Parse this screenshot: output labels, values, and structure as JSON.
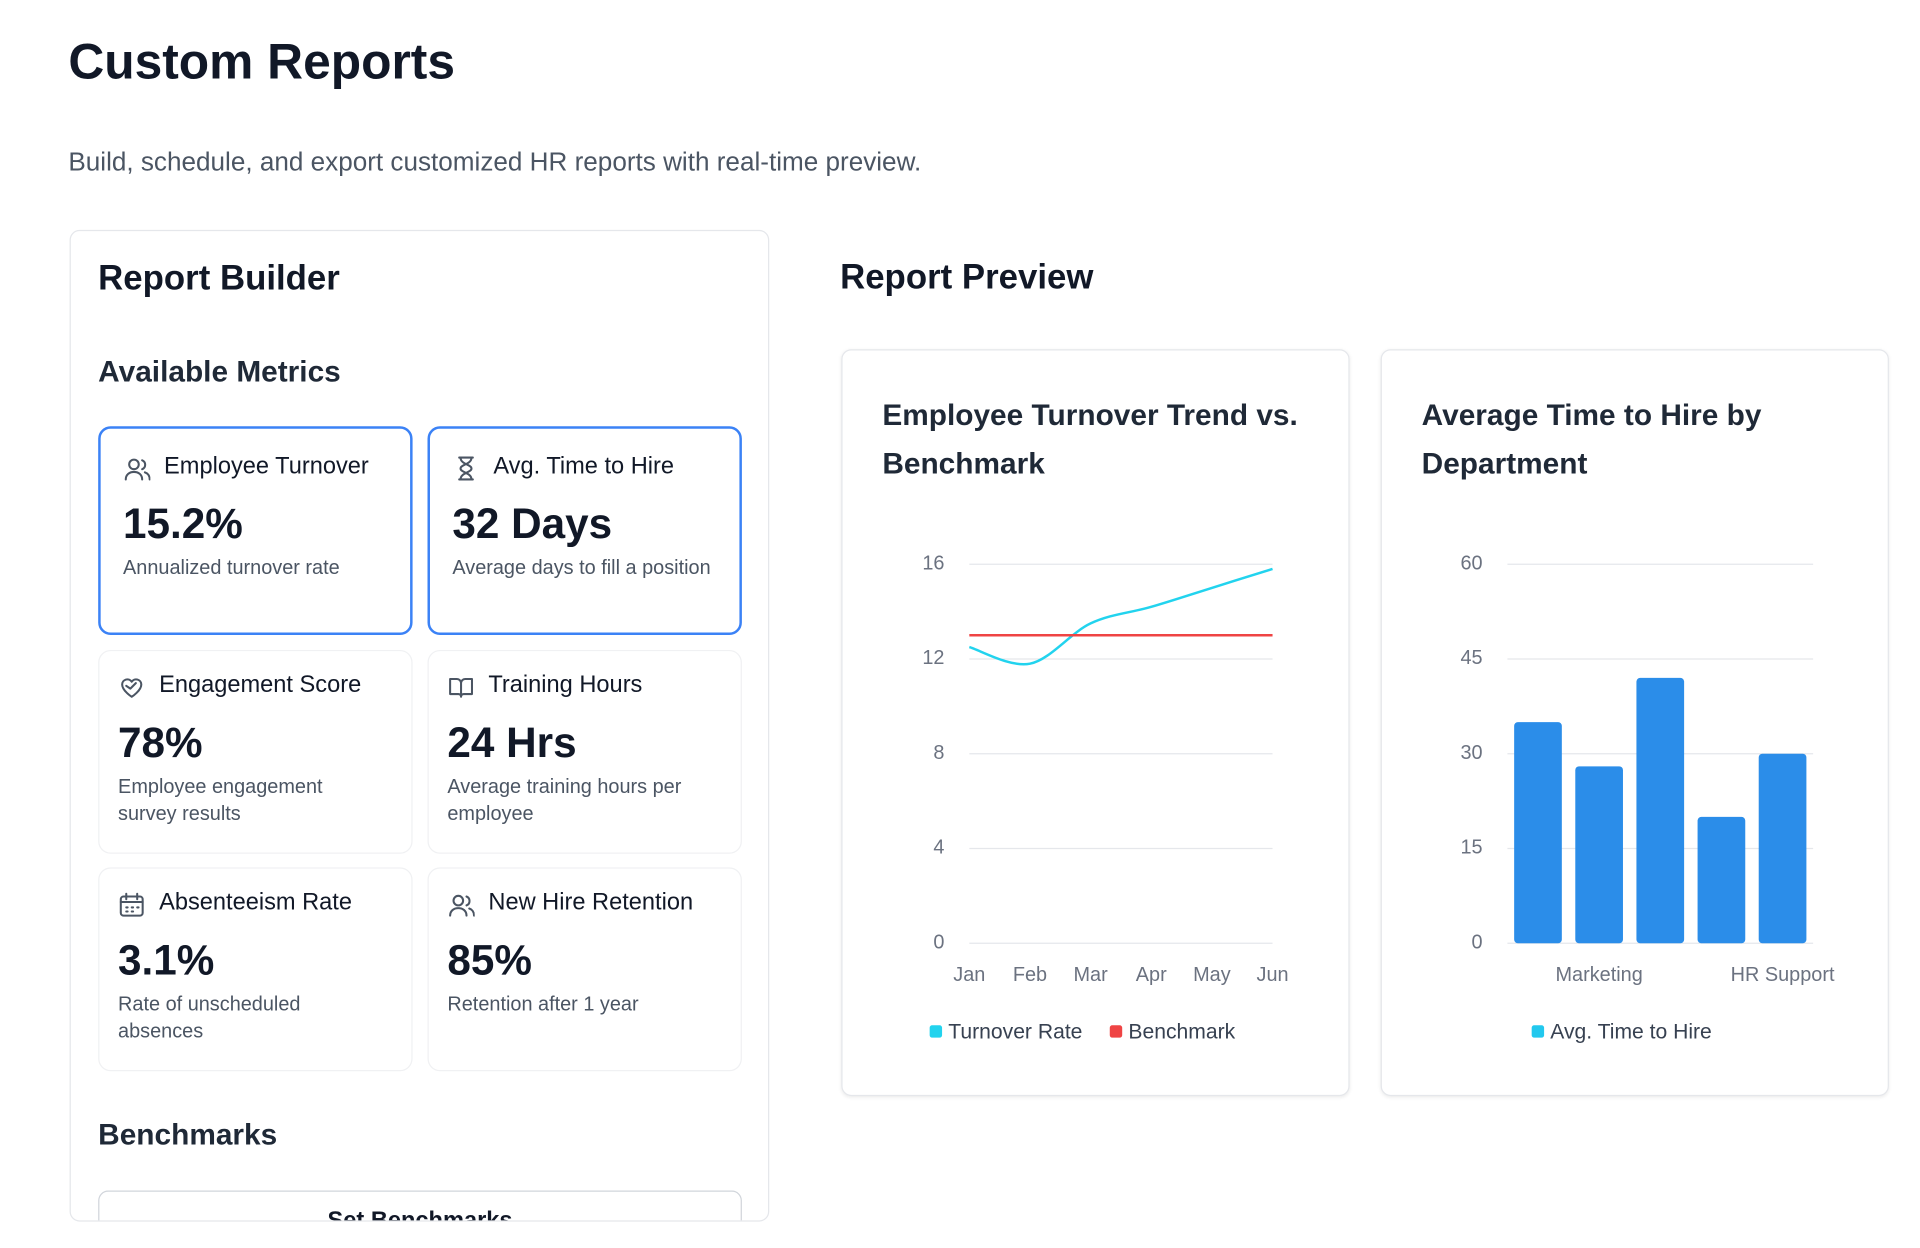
{
  "header": {
    "title": "Custom Reports",
    "subtitle": "Build, schedule, and export customized HR reports with real-time preview."
  },
  "builder": {
    "title": "Report Builder",
    "metrics_heading": "Available Metrics",
    "metrics": [
      {
        "label": "Employee Turnover",
        "value": "15.2%",
        "description": "Annualized turnover rate",
        "selected": true
      },
      {
        "label": "Avg. Time to Hire",
        "value": "32 Days",
        "description": "Average days to fill a position",
        "selected": true
      },
      {
        "label": "Engagement Score",
        "value": "78%",
        "description": "Employee engagement survey results",
        "selected": false
      },
      {
        "label": "Training Hours",
        "value": "24 Hrs",
        "description": "Average training hours per employee",
        "selected": false
      },
      {
        "label": "Absenteeism Rate",
        "value": "3.1%",
        "description": "Rate of unscheduled absences",
        "selected": false
      },
      {
        "label": "New Hire Retention",
        "value": "85%",
        "description": "Retention after 1 year",
        "selected": false
      }
    ],
    "benchmarks_heading": "Benchmarks",
    "benchmarks_button": "Set Benchmarks"
  },
  "preview": {
    "title": "Report Preview"
  },
  "chart_data": [
    {
      "type": "line",
      "title": "Employee Turnover Trend vs. Benchmark",
      "categories": [
        "Jan",
        "Feb",
        "Mar",
        "Apr",
        "May",
        "Jun"
      ],
      "series": [
        {
          "name": "Turnover Rate",
          "color": "#22d3ee",
          "values": [
            12.5,
            11.8,
            13.5,
            14.2,
            15.0,
            15.8
          ]
        },
        {
          "name": "Benchmark",
          "color": "#ef4444",
          "values": [
            13,
            13,
            13,
            13,
            13,
            13
          ]
        }
      ],
      "ylim": [
        0,
        16
      ],
      "yticks": [
        0,
        4,
        8,
        12,
        16
      ],
      "grid": true
    },
    {
      "type": "bar",
      "title": "Average Time to Hire by Department",
      "categories": [
        null,
        "Marketing",
        null,
        null,
        "HR Support"
      ],
      "series": [
        {
          "name": "Avg. Time to Hire",
          "color": "#2b8de9",
          "legend_color": "#22c8ee",
          "values": [
            35,
            28,
            42,
            20,
            30
          ]
        }
      ],
      "ylim": [
        0,
        60
      ],
      "yticks": [
        0,
        15,
        30,
        45,
        60
      ],
      "grid": true
    }
  ]
}
